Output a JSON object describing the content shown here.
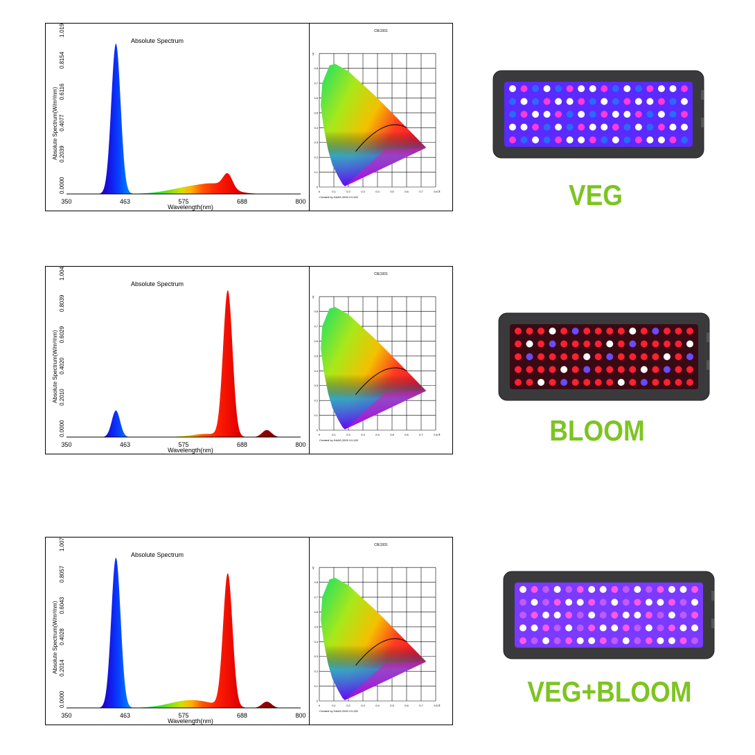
{
  "chart_data": [
    {
      "type": "area",
      "title": "Absolute Spectrum",
      "xlabel": "Wavelength(nm)",
      "ylabel": "Absolute Spectrum(W/m²/nm)",
      "xlim": [
        350,
        800
      ],
      "ylim": [
        0,
        1.0193
      ],
      "x_ticks": [
        "350",
        "463",
        "575",
        "688",
        "800"
      ],
      "y_ticks": [
        "0.0000",
        "0.2039",
        "0.4077",
        "0.6116",
        "0.8154",
        "1.0193"
      ],
      "peaks": [
        {
          "center": 445,
          "width": 9,
          "height": 0.96
        },
        {
          "center": 600,
          "width": 45,
          "height": 0.05
        },
        {
          "center": 660,
          "width": 9,
          "height": 0.09
        },
        {
          "center": 640,
          "width": 25,
          "height": 0.03
        }
      ]
    },
    {
      "type": "area",
      "title": "Absolute Spectrum",
      "xlabel": "Wavelength(nm)",
      "ylabel": "Absolute Spectrum(W/m²/nm)",
      "xlim": [
        350,
        800
      ],
      "ylim": [
        0,
        1.0049
      ],
      "x_ticks": [
        "350",
        "463",
        "575",
        "688",
        "800"
      ],
      "y_ticks": [
        "0.0000",
        "0.2010",
        "0.4020",
        "0.6029",
        "0.8039",
        "1.0049"
      ],
      "peaks": [
        {
          "center": 445,
          "width": 8,
          "height": 0.17
        },
        {
          "center": 660,
          "width": 9,
          "height": 0.93
        },
        {
          "center": 620,
          "width": 30,
          "height": 0.02
        },
        {
          "center": 735,
          "width": 9,
          "height": 0.045
        }
      ]
    },
    {
      "type": "area",
      "title": "Absolute Spectrum",
      "xlabel": "Wavelength(nm)",
      "ylabel": "Absolute Spectrum(W/m²/nm)",
      "xlim": [
        350,
        800
      ],
      "ylim": [
        0,
        1.0071
      ],
      "x_ticks": [
        "350",
        "463",
        "575",
        "688",
        "800"
      ],
      "y_ticks": [
        "0.0000",
        "0.2014",
        "0.4028",
        "0.6043",
        "0.8057",
        "1.0071"
      ],
      "peaks": [
        {
          "center": 445,
          "width": 9,
          "height": 0.96
        },
        {
          "center": 660,
          "width": 9,
          "height": 0.85
        },
        {
          "center": 590,
          "width": 40,
          "height": 0.05
        },
        {
          "center": 735,
          "width": 9,
          "height": 0.04
        }
      ]
    }
  ],
  "cie": {
    "title": "CIE1931",
    "y_label": "y",
    "x_label": "x",
    "ticks": [
      "0",
      "0.1",
      "0.2",
      "0.3",
      "0.4",
      "0.5",
      "0.6",
      "0.7",
      "0.8"
    ],
    "footer": "Created by HAAS-2000 V4.128"
  },
  "modes": [
    {
      "label": "VEG",
      "led_mix": "blue"
    },
    {
      "label": "BLOOM",
      "led_mix": "red"
    },
    {
      "label": "VEG+BLOOM",
      "led_mix": "mixed"
    }
  ],
  "colors": {
    "label_green": "#7dc421",
    "fixture_body": "#3a3a3c"
  }
}
